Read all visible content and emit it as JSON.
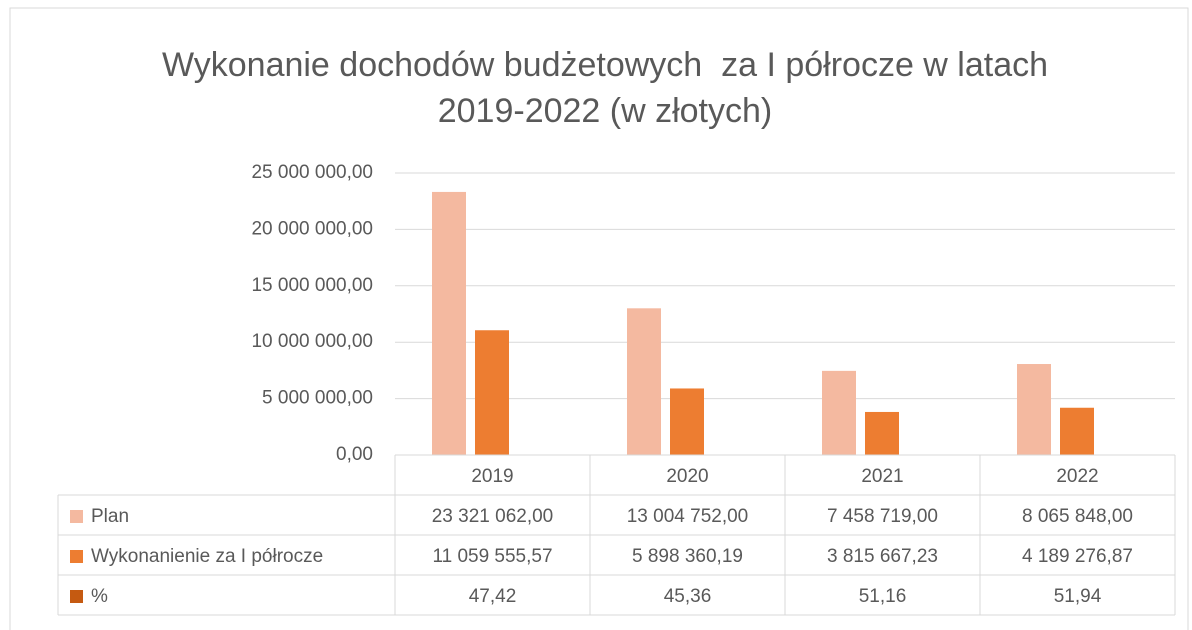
{
  "chart_data": {
    "type": "bar",
    "title": "Wykonanie dochodów budżetowych  za I półrocze w latach 2019-2022 (w złotych)",
    "categories": [
      "2019",
      "2020",
      "2021",
      "2022"
    ],
    "series": [
      {
        "name": "Plan",
        "color": "#f4b9a0",
        "values": [
          23321062,
          13004752,
          7458719,
          8065848
        ],
        "value_labels": [
          "23 321 062,00",
          "13 004 752,00",
          "7 458 719,00",
          "8 065 848,00"
        ]
      },
      {
        "name": "Wykonanienie za I półrocze",
        "color": "#ed7d31",
        "values": [
          11059555.57,
          5898360.19,
          3815667.23,
          4189276.87
        ],
        "value_labels": [
          "11 059 555,57",
          "5 898 360,19",
          "3 815 667,23",
          "4 189 276,87"
        ]
      },
      {
        "name": "%",
        "color": "#c55a11",
        "values": [
          47.42,
          45.36,
          51.16,
          51.94
        ],
        "value_labels": [
          "47,42",
          "45,36",
          "51,16",
          "51,94"
        ]
      }
    ],
    "ylim": [
      0,
      25000000
    ],
    "yticks": [
      {
        "value": 0,
        "label": "0,00"
      },
      {
        "value": 5000000,
        "label": "5 000 000,00"
      },
      {
        "value": 10000000,
        "label": "10 000 000,00"
      },
      {
        "value": 15000000,
        "label": "15 000 000,00"
      },
      {
        "value": 20000000,
        "label": "20 000 000,00"
      },
      {
        "value": 25000000,
        "label": "25 000 000,00"
      }
    ],
    "grid": true
  }
}
